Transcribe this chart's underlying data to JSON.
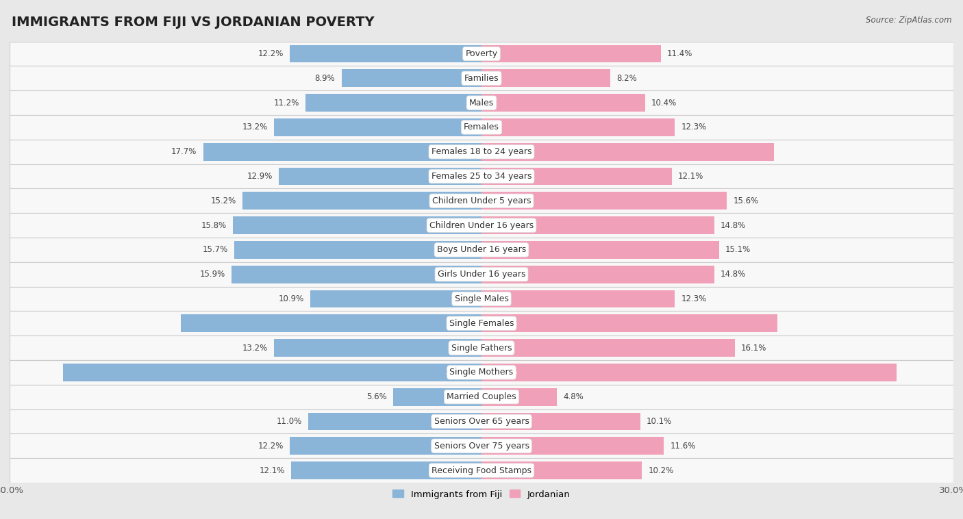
{
  "title": "IMMIGRANTS FROM FIJI VS JORDANIAN POVERTY",
  "source": "Source: ZipAtlas.com",
  "categories": [
    "Poverty",
    "Families",
    "Males",
    "Females",
    "Females 18 to 24 years",
    "Females 25 to 34 years",
    "Children Under 5 years",
    "Children Under 16 years",
    "Boys Under 16 years",
    "Girls Under 16 years",
    "Single Males",
    "Single Females",
    "Single Fathers",
    "Single Mothers",
    "Married Couples",
    "Seniors Over 65 years",
    "Seniors Over 75 years",
    "Receiving Food Stamps"
  ],
  "fiji_values": [
    12.2,
    8.9,
    11.2,
    13.2,
    17.7,
    12.9,
    15.2,
    15.8,
    15.7,
    15.9,
    10.9,
    19.1,
    13.2,
    26.6,
    5.6,
    11.0,
    12.2,
    12.1
  ],
  "jordan_values": [
    11.4,
    8.2,
    10.4,
    12.3,
    18.6,
    12.1,
    15.6,
    14.8,
    15.1,
    14.8,
    12.3,
    18.8,
    16.1,
    26.4,
    4.8,
    10.1,
    11.6,
    10.2
  ],
  "fiji_color": "#8ab4d8",
  "jordan_color": "#f0a0b8",
  "fiji_label": "Immigrants from Fiji",
  "jordan_label": "Jordanian",
  "background_color": "#e8e8e8",
  "row_color_light": "#f5f5f5",
  "row_color_dark": "#e0e0e0",
  "xlim": 30.0,
  "title_fontsize": 14,
  "label_fontsize": 9,
  "value_fontsize": 8.5
}
